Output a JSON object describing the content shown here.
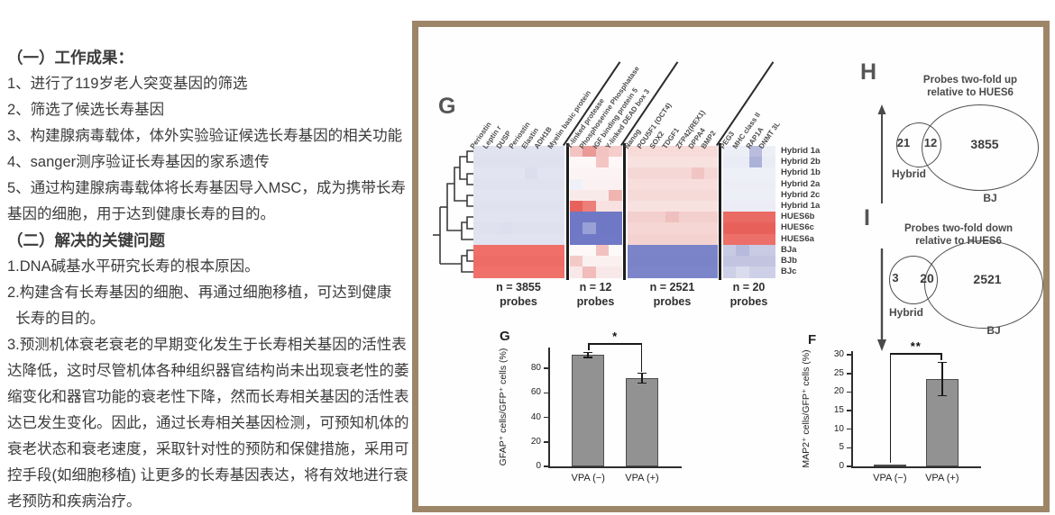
{
  "left_panel": {
    "section1_title": "（一）工作成果：",
    "section1_items": [
      "1、进行了119岁老人突变基因的筛选",
      "2、筛选了候选长寿基因",
      "3、构建腺病毒载体，体外实验验证候选长寿基因的相关功能",
      "4、sanger测序验证长寿基因的家系遗传",
      "5、通过构建腺病毒载体将长寿基因导入MSC，成为携带长寿\n基因的细胞，用于达到健康长寿的目的。"
    ],
    "section2_title": "（二）解决的关键问题",
    "section2_items": [
      "1.DNA碱基水平研究长寿的根本原因。",
      "2.构建含有长寿基因的细胞、再通过细胞移植，可达到健康\n  长寿的目的。",
      "3.预测机体衰老衰老的早期变化发生于长寿相关基因的活性表\n达降低，这时尽管机体各种组织器官结构尚未出现衰老性的萎\n缩变化和器官功能的衰老性下降，然而长寿相关基因的活性表\n达已发生变化。因此，通过长寿相关基因检测，可预知机体的\n衰老状态和衰老速度，采取针对性的预防和保健措施，采用可\n控手段(如细胞移植) 让更多的长寿基因表达，将有效地进行衰\n老预防和疾病治疗。"
    ]
  },
  "figure": {
    "frame_color": "#9d8668",
    "bar_fill": "#929292"
  },
  "chart_data": [
    {
      "type": "heatmap",
      "label": "G",
      "probes_word": "probes",
      "rows": [
        "Hybrid 1a",
        "Hybrid 2b",
        "Hybrid 1b",
        "Hybrid 2a",
        "Hybrid 2c",
        "Hybrid 1a",
        "HUES6b",
        "HUES6c",
        "HUES6a",
        "BJa",
        "BJb",
        "BJc"
      ],
      "groups": [
        {
          "genes": [
            "Periostin",
            "Leptin r",
            "DUSP",
            "Periostin",
            "Elastin",
            "ADH1B",
            "Myelin basic protein"
          ],
          "n_label": "n = 3855"
        },
        {
          "genes": [
            "Y-linked protease",
            "Phosphoserine Phosphatase",
            "IGF binding protein 5",
            "Y-linked DEAD box 3"
          ],
          "n_label": "n = 12"
        },
        {
          "genes": [
            "Nanog",
            "POU5F1 (OCT4)",
            "SOX2",
            "TDGF1",
            "ZFP42(REX1)",
            "DPPA4",
            "BMP2"
          ],
          "n_label": "n = 2521"
        },
        {
          "genes": [
            "PEG3",
            "MHC class II",
            "RAP1A",
            "DNMT 3L"
          ],
          "n_label": "n = 20"
        }
      ],
      "row_colors": [
        [
          "#e2e3f0",
          "#e0e1ee",
          "#e3e4f1",
          "#e1e2ef",
          "#e3e4f1",
          "#e1e2ef",
          "#e2e3f0",
          "#e0e1ee",
          "#e2e3f0",
          "#f07069",
          "#ee6c66",
          "#f07169"
        ],
        [
          "#f2c3c1",
          "#fdf7f7",
          "#fcf4f4",
          "#fbf1f3",
          "#f9eaea",
          "#f7e2e1",
          "#6e78c5",
          "#6e78c5",
          "#6f79c6",
          "#fdf9f9",
          "#fbf0f0",
          "#f8e8e8"
        ],
        [
          "#f6dbd9",
          "#f8e2e0",
          "#f5d7d5",
          "#f7dedc",
          "#f6dad8",
          "#f8e2e0",
          "#f3cfcd",
          "#f5d6d4",
          "#f4d2d0",
          "#7b84c9",
          "#7a83c8",
          "#7c85ca"
        ],
        [
          "#edeff7",
          "#eaecf5",
          "#eef0f8",
          "#ecedf6",
          "#edeff7",
          "#ebecf5",
          "#ea6a64",
          "#e7605a",
          "#ec6f69",
          "#c9cbe4",
          "#c2c4e0",
          "#ced0e7"
        ]
      ],
      "speckles": [
        {
          "p": 1,
          "r": 0,
          "c": 1,
          "color": "#ea9a96"
        },
        {
          "p": 1,
          "r": 0,
          "c": 3,
          "color": "#f5cdcb"
        },
        {
          "p": 1,
          "r": 1,
          "c": 2,
          "color": "#f3c6c4"
        },
        {
          "p": 1,
          "r": 3,
          "c": 0,
          "color": "#eef2f8"
        },
        {
          "p": 1,
          "r": 4,
          "c": 3,
          "color": "#f0b4b1"
        },
        {
          "p": 1,
          "r": 5,
          "c": 0,
          "color": "#e7615d"
        },
        {
          "p": 1,
          "r": 5,
          "c": 1,
          "color": "#ec7f7a"
        },
        {
          "p": 1,
          "r": 7,
          "c": 1,
          "color": "#98a0d5"
        },
        {
          "p": 1,
          "r": 9,
          "c": 2,
          "color": "#f2c2c0"
        },
        {
          "p": 1,
          "r": 10,
          "c": 0,
          "color": "#f4cac8"
        },
        {
          "p": 1,
          "r": 11,
          "c": 1,
          "color": "#f1bcb9"
        },
        {
          "p": 2,
          "r": 2,
          "c": 5,
          "color": "#f1c5c3"
        },
        {
          "p": 2,
          "r": 6,
          "c": 3,
          "color": "#efc0be"
        },
        {
          "p": 0,
          "r": 2,
          "c": 4,
          "color": "#dcdded"
        },
        {
          "p": 0,
          "r": 7,
          "c": 2,
          "color": "#dddeee"
        },
        {
          "p": 3,
          "r": 0,
          "c": 2,
          "color": "#b9bcdd"
        },
        {
          "p": 3,
          "r": 1,
          "c": 2,
          "color": "#acb1d8"
        },
        {
          "p": 3,
          "r": 9,
          "c": 1,
          "color": "#b6badc"
        },
        {
          "p": 3,
          "r": 11,
          "c": 1,
          "color": "#dadcee"
        }
      ]
    },
    {
      "type": "venn",
      "label": "H",
      "title": "Probes two-fold up\nrelative to HUES6",
      "left_label": "Hybrid",
      "right_label": "BJ",
      "counts": {
        "left_only": "21",
        "intersection": "12",
        "right_only": "3855"
      },
      "arrow": "up"
    },
    {
      "type": "venn",
      "label": "I",
      "title": "Probes two-fold down\nrelative to HUES6",
      "left_label": "Hybrid",
      "right_label": "BJ",
      "counts": {
        "left_only": "3",
        "intersection": "20",
        "right_only": "2521"
      },
      "arrow": "down"
    },
    {
      "type": "bar",
      "label": "G",
      "ylabel": "GFAP⁺ cells/GFP⁺ cells (%)",
      "categories": [
        "VPA (−)",
        "VPA (+)"
      ],
      "values": [
        91,
        72
      ],
      "errors": [
        2,
        4
      ],
      "yticks": [
        0,
        20,
        40,
        60,
        80
      ],
      "ylim": [
        0,
        97
      ],
      "significance": "*"
    },
    {
      "type": "bar",
      "label": "F",
      "ylabel": "MAP2⁺ cells/GFP⁺ cells (%)",
      "categories": [
        "VPA (−)",
        "VPA (+)"
      ],
      "values": [
        0.5,
        23.5
      ],
      "errors": [
        0,
        4.5
      ],
      "yticks": [
        0,
        5,
        10,
        15,
        20,
        25,
        30
      ],
      "ylim": [
        0,
        31
      ],
      "significance": "**"
    }
  ]
}
